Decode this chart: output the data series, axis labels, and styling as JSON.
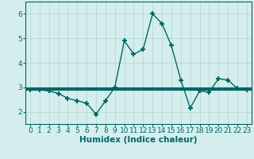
{
  "title": "",
  "xlabel": "Humidex (Indice chaleur)",
  "ylabel": "",
  "x_values": [
    0,
    1,
    2,
    3,
    4,
    5,
    6,
    7,
    8,
    9,
    10,
    11,
    12,
    13,
    14,
    15,
    16,
    17,
    18,
    19,
    20,
    21,
    22,
    23
  ],
  "y_values": [
    2.9,
    2.9,
    2.85,
    2.75,
    2.55,
    2.45,
    2.35,
    1.9,
    2.45,
    3.0,
    4.9,
    4.35,
    4.55,
    6.0,
    5.6,
    4.7,
    3.3,
    2.15,
    2.85,
    2.8,
    3.35,
    3.3,
    2.95,
    2.9
  ],
  "hline_y": 2.93,
  "line_color": "#006666",
  "hline_color": "#006666",
  "bg_color": "#d4eeed",
  "grid_color": "#b8d8d4",
  "ylim": [
    1.5,
    6.5
  ],
  "xlim": [
    -0.5,
    23.5
  ],
  "yticks": [
    2,
    3,
    4,
    5,
    6
  ],
  "xticks": [
    0,
    1,
    2,
    3,
    4,
    5,
    6,
    7,
    8,
    9,
    10,
    11,
    12,
    13,
    14,
    15,
    16,
    17,
    18,
    19,
    20,
    21,
    22,
    23
  ],
  "marker": "+",
  "markersize": 5,
  "markeredgewidth": 1.5,
  "linewidth": 1.0,
  "xlabel_fontsize": 7.5,
  "tick_fontsize": 6.5,
  "hline_linewidth": 3.0
}
